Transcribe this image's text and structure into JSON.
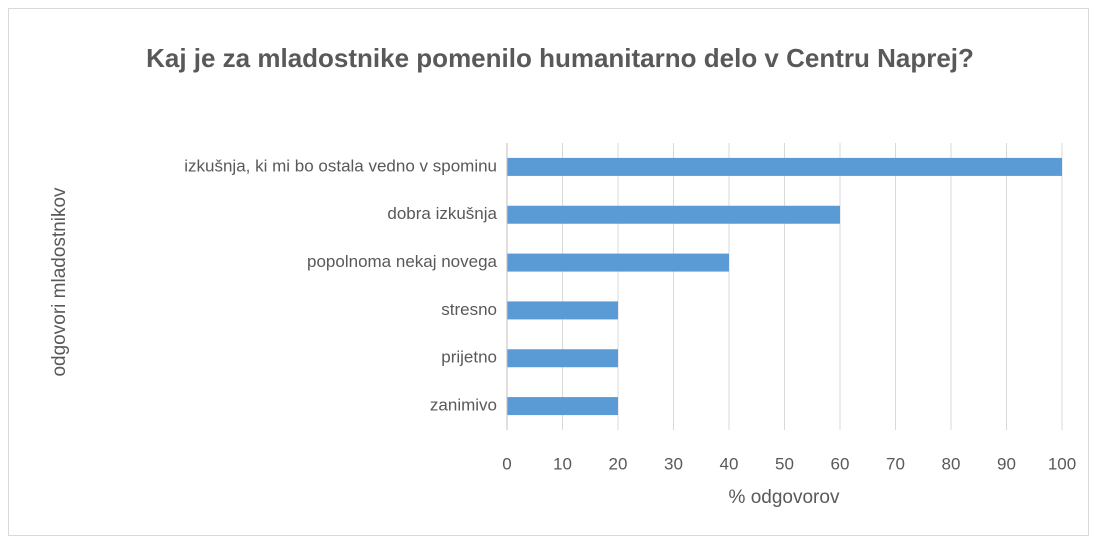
{
  "chart_data": {
    "type": "bar",
    "orientation": "horizontal",
    "title": "Kaj je za mladostnike pomenilo humanitarno delo v Centru Naprej?",
    "xlabel": "% odgovorov",
    "ylabel": "odgovori mladostnikov",
    "categories": [
      "izkušnja, ki mi bo ostala vedno v spominu",
      "dobra izkušnja",
      "popolnoma nekaj novega",
      "stresno",
      "prijetno",
      "zanimivo"
    ],
    "values": [
      100,
      60,
      40,
      20,
      20,
      20
    ],
    "color": "#5b9bd5",
    "xlim": [
      0,
      100
    ],
    "xticks": [
      0,
      10,
      20,
      30,
      40,
      50,
      60,
      70,
      80,
      90,
      100
    ],
    "grid": true
  }
}
